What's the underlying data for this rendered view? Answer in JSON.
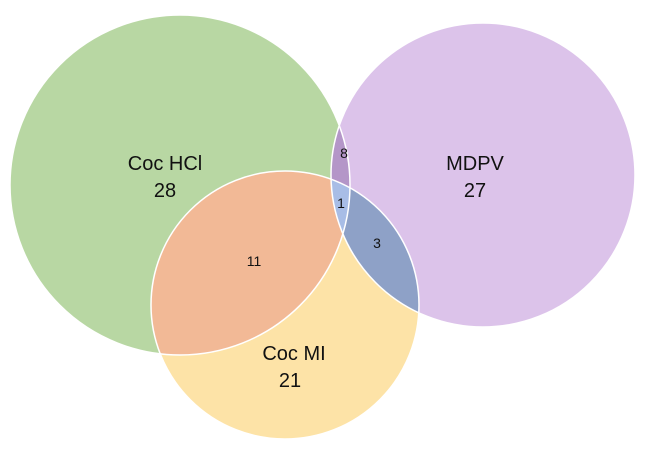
{
  "sets": [
    {
      "id": "coc-hcl",
      "label": "Coc HCl",
      "count": "28",
      "color": "#b8d7a3"
    },
    {
      "id": "mdpv",
      "label": "MDPV",
      "count": "27",
      "color": "#dcc3ea"
    },
    {
      "id": "coc-mi",
      "label": "Coc MI",
      "count": "21",
      "color": "#fde3a7"
    }
  ],
  "overlaps": {
    "coc_hcl_mdpv": {
      "count": "8",
      "color": "#b496c8"
    },
    "coc_hcl_coc_mi": {
      "count": "11",
      "color": "#f2b996"
    },
    "mdpv_coc_mi": {
      "count": "3",
      "color": "#8ea1c7"
    },
    "all_three": {
      "count": "1",
      "color": "#a8bde6"
    }
  },
  "outline_color": "#ffffff"
}
